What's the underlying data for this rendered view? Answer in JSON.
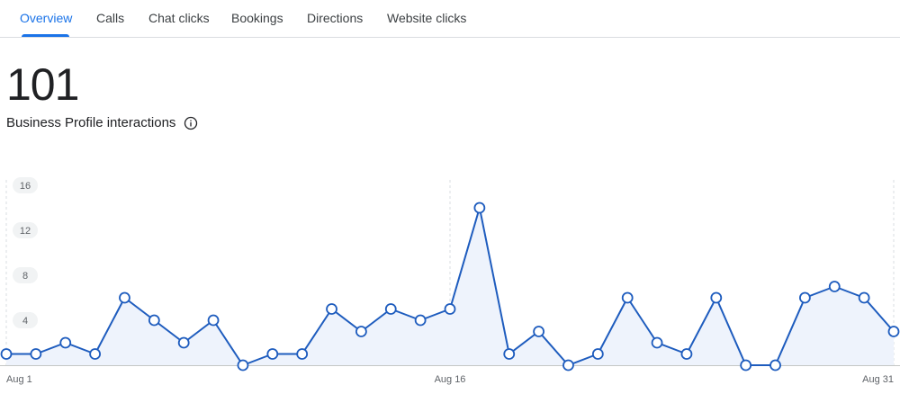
{
  "tabs": [
    {
      "label": "Overview",
      "active": true
    },
    {
      "label": "Calls",
      "active": false
    },
    {
      "label": "Chat clicks",
      "active": false
    },
    {
      "label": "Bookings",
      "active": false
    },
    {
      "label": "Directions",
      "active": false
    },
    {
      "label": "Website clicks",
      "active": false
    }
  ],
  "summary": {
    "total": "101",
    "label": "Business Profile interactions",
    "info_icon": "info-icon"
  },
  "colors": {
    "accent": "#1a73e8",
    "line": "#1e5cbe",
    "area_fill": "#eef3fc"
  },
  "chart_data": {
    "type": "line",
    "x": [
      "Aug 1",
      "Aug 2",
      "Aug 3",
      "Aug 4",
      "Aug 5",
      "Aug 6",
      "Aug 7",
      "Aug 8",
      "Aug 9",
      "Aug 10",
      "Aug 11",
      "Aug 12",
      "Aug 13",
      "Aug 14",
      "Aug 15",
      "Aug 16",
      "Aug 17",
      "Aug 18",
      "Aug 19",
      "Aug 20",
      "Aug 21",
      "Aug 22",
      "Aug 23",
      "Aug 24",
      "Aug 25",
      "Aug 26",
      "Aug 27",
      "Aug 28",
      "Aug 29",
      "Aug 30",
      "Aug 31"
    ],
    "series": [
      {
        "values": [
          1,
          1,
          2,
          1,
          6,
          4,
          2,
          4,
          0,
          1,
          1,
          5,
          3,
          5,
          4,
          5,
          14,
          1,
          3,
          0,
          1,
          6,
          2,
          1,
          6,
          0,
          0,
          6,
          7,
          6,
          3
        ]
      }
    ],
    "x_tick_labels": [
      "Aug 1",
      "Aug 16",
      "Aug 31"
    ],
    "y_ticks": [
      4,
      8,
      12,
      16
    ],
    "ylim": [
      0,
      16
    ],
    "grid": false,
    "area_fill": true
  }
}
